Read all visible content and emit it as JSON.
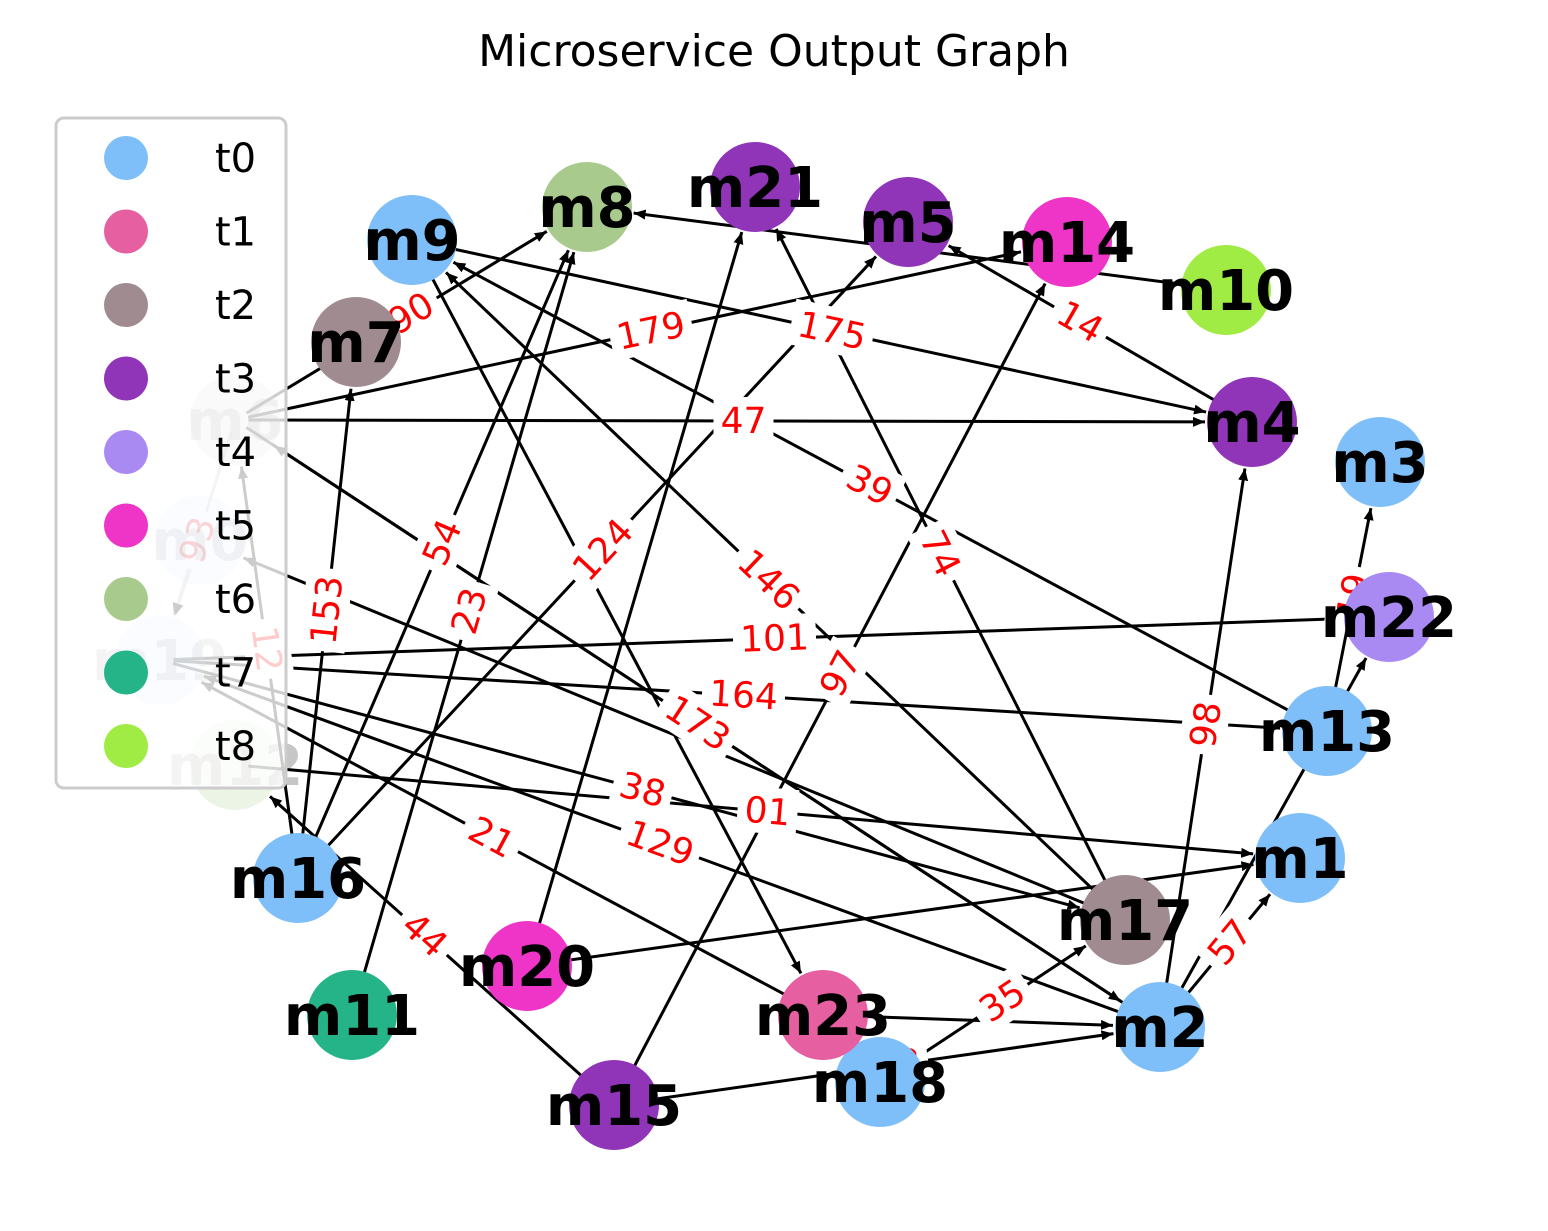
{
  "title": "Microservice Output Graph",
  "legend": {
    "placement": "upper-left",
    "items": [
      {
        "label": "t0",
        "color": "#7fbff9"
      },
      {
        "label": "t1",
        "color": "#e65fa0"
      },
      {
        "label": "t2",
        "color": "#a08c90"
      },
      {
        "label": "t3",
        "color": "#9035b8"
      },
      {
        "label": "t4",
        "color": "#a98af3"
      },
      {
        "label": "t5",
        "color": "#ee35c8"
      },
      {
        "label": "t6",
        "color": "#a8cb8d"
      },
      {
        "label": "t7",
        "color": "#25b488"
      },
      {
        "label": "t8",
        "color": "#a0ec45"
      }
    ]
  },
  "nodes": [
    {
      "id": "m0",
      "type": "t0"
    },
    {
      "id": "m1",
      "type": "t0"
    },
    {
      "id": "m2",
      "type": "t0"
    },
    {
      "id": "m3",
      "type": "t0"
    },
    {
      "id": "m4",
      "type": "t3"
    },
    {
      "id": "m5",
      "type": "t3"
    },
    {
      "id": "m6",
      "type": "t2"
    },
    {
      "id": "m7",
      "type": "t2"
    },
    {
      "id": "m8",
      "type": "t6"
    },
    {
      "id": "m9",
      "type": "t0"
    },
    {
      "id": "m10",
      "type": "t8"
    },
    {
      "id": "m11",
      "type": "t7"
    },
    {
      "id": "m12",
      "type": "t6"
    },
    {
      "id": "m13",
      "type": "t0"
    },
    {
      "id": "m14",
      "type": "t5"
    },
    {
      "id": "m15",
      "type": "t3"
    },
    {
      "id": "m16",
      "type": "t0"
    },
    {
      "id": "m17",
      "type": "t2"
    },
    {
      "id": "m18",
      "type": "t0"
    },
    {
      "id": "m19",
      "type": "t0"
    },
    {
      "id": "m20",
      "type": "t5"
    },
    {
      "id": "m21",
      "type": "t3"
    },
    {
      "id": "m22",
      "type": "t4"
    },
    {
      "id": "m23",
      "type": "t1"
    }
  ],
  "edges": [
    {
      "source": "m6",
      "target": "m4",
      "label": "47"
    },
    {
      "source": "m9",
      "target": "m4",
      "label": "175"
    },
    {
      "source": "m6",
      "target": "m14",
      "label": "179"
    },
    {
      "source": "m4",
      "target": "m5",
      "label": "14"
    },
    {
      "source": "m10",
      "target": "m8",
      "label": ""
    },
    {
      "source": "m6",
      "target": "m8",
      "label": "90"
    },
    {
      "source": "m16",
      "target": "m5",
      "label": "124"
    },
    {
      "source": "m15",
      "target": "m14",
      "label": "97"
    },
    {
      "source": "m2",
      "target": "m4",
      "label": "98"
    },
    {
      "source": "m17",
      "target": "m21",
      "label": "74"
    },
    {
      "source": "m16",
      "target": "m7",
      "label": "153"
    },
    {
      "source": "m16",
      "target": "m8",
      "label": "54"
    },
    {
      "source": "m11",
      "target": "m8",
      "label": "23"
    },
    {
      "source": "m13",
      "target": "m9",
      "label": "39"
    },
    {
      "source": "m17",
      "target": "m9",
      "label": "146"
    },
    {
      "source": "m19",
      "target": "m22",
      "label": "101"
    },
    {
      "source": "m19",
      "target": "m13",
      "label": "164"
    },
    {
      "source": "m19",
      "target": "m17",
      "label": "38"
    },
    {
      "source": "m23",
      "target": "m19",
      "label": "21"
    },
    {
      "source": "m2",
      "target": "m19",
      "label": "129"
    },
    {
      "source": "m15",
      "target": "m12",
      "label": "44"
    },
    {
      "source": "m2",
      "target": "m6",
      "label": "173"
    },
    {
      "source": "m2",
      "target": "m1",
      "label": "57"
    },
    {
      "source": "m18",
      "target": "m17",
      "label": "35"
    },
    {
      "source": "m15",
      "target": "m2",
      "label": "143"
    },
    {
      "source": "m13",
      "target": "m3",
      "label": "19"
    },
    {
      "source": "m2",
      "target": "m22",
      "label": ""
    },
    {
      "source": "m6",
      "target": "m19",
      "label": "93"
    },
    {
      "source": "m16",
      "target": "m6",
      "label": "12"
    },
    {
      "source": "m20",
      "target": "m21",
      "label": ""
    },
    {
      "source": "m0",
      "target": "m19",
      "label": ""
    },
    {
      "source": "m23",
      "target": "m2",
      "label": ""
    },
    {
      "source": "m17",
      "target": "m0",
      "label": ""
    },
    {
      "source": "m20",
      "target": "m1",
      "label": ""
    },
    {
      "source": "m9",
      "target": "m23",
      "label": ""
    },
    {
      "source": "m12",
      "target": "m1",
      "label": "01"
    },
    {
      "source": "m6",
      "target": "m2",
      "label": ""
    }
  ]
}
